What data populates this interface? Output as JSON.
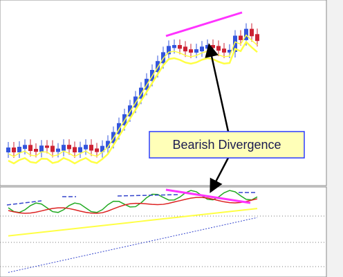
{
  "annotation": {
    "text": "Bearish Divergence"
  }
}
